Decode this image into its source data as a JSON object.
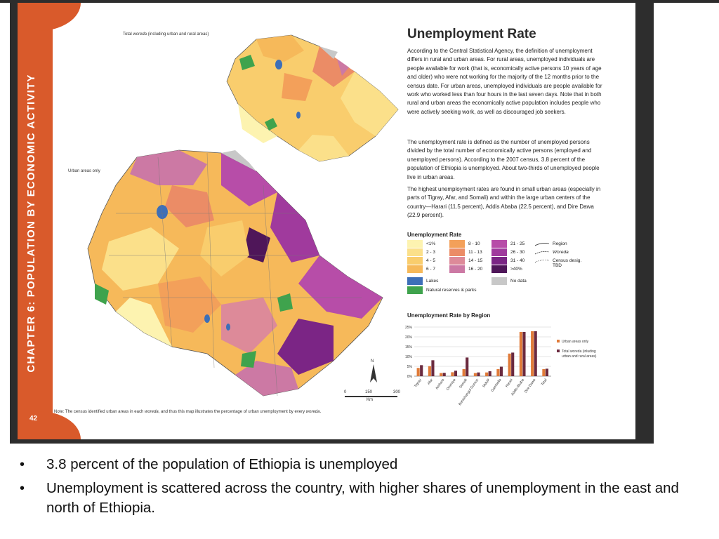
{
  "sidebar": {
    "chapter": "CHAPTER 6: POPULATION BY ECONOMIC ACTIVITY",
    "page_number": "42"
  },
  "maps": {
    "top_label_prefix": "Total ",
    "top_label_italic": "woreda",
    "top_label_suffix": " (including urban and rural areas)",
    "main_label": "Urban areas only",
    "north": "N",
    "scale": [
      "0",
      "150",
      "300"
    ],
    "scale_unit": "Km"
  },
  "note": {
    "prefix": "Note: The census identified urban areas in each ",
    "italic1": "woreda",
    "middle": ", and thus this map illustrates the percentage of urban unemployment by every ",
    "italic2": "woreda",
    "suffix": "."
  },
  "article": {
    "title": "Unemployment Rate",
    "paragraphs": [
      "According to the Central Statistical Agency, the definition of unemployment differs in rural and urban areas. For rural areas, unemployed individuals are people available for work (that is, economically active persons 10 years of age and older) who were not working for the majority of the 12 months prior to the census date. For urban areas, unemployed individuals are people available for work who worked less than four hours in the last seven days. Note that in both rural and urban areas the economically active population includes people who were actively seeking work, as well as discouraged job seekers.",
      "The unemployment rate is defined as the number of unemployed persons divided by the total number of economically active persons (employed and unemployed persons). According to the 2007 census, 3.8 percent of the population of Ethiopia is unemployed. About two-thirds of unemployed people live in urban areas.",
      "The highest unemployment rates are found in small urban areas (especially in parts of Tigray, Afar, and Somali) and within the large urban centers of the country—Harari (11.5 percent), Addis Ababa (22.5 percent), and Dire Dawa (22.9 percent)."
    ]
  },
  "legend": {
    "title": "Unemployment Rate",
    "items": [
      {
        "label": "<1%",
        "color": "#fdf3b0"
      },
      {
        "label": "2 - 3",
        "color": "#fbe08a"
      },
      {
        "label": "4 - 5",
        "color": "#f9cd6d"
      },
      {
        "label": "6 - 7",
        "color": "#f6b95a"
      },
      {
        "label": "8 - 10",
        "color": "#f3a05a"
      },
      {
        "label": "11 - 13",
        "color": "#eb8c66"
      },
      {
        "label": "14 - 15",
        "color": "#dd8a99"
      },
      {
        "label": "16 - 20",
        "color": "#cc79a4"
      },
      {
        "label": "21 - 25",
        "color": "#b74da8"
      },
      {
        "label": "26 - 30",
        "color": "#a03a9d"
      },
      {
        "label": "31 - 40",
        "color": "#7b2585"
      },
      {
        "label": ">40%",
        "color": "#4f1659"
      },
      {
        "label": "Lakes",
        "color": "#3d6fb8"
      },
      {
        "label": "No data",
        "color": "#c8c8c8"
      },
      {
        "label": "Natural reserves & parks",
        "color": "#3fa34d"
      }
    ],
    "lines": [
      {
        "label": "Region"
      },
      {
        "label": "Woreda"
      },
      {
        "label": "Census desig. TBD"
      }
    ]
  },
  "chart_data": {
    "type": "bar",
    "title": "Unemployment Rate by Region",
    "categories": [
      "Tigray",
      "Afar",
      "Amhara",
      "Oromiya",
      "Somali",
      "Benishangul Gumuz",
      "SNNP",
      "Gambella",
      "Harari",
      "Addis Ababa",
      "Dire Dawa",
      "Total"
    ],
    "series": [
      {
        "name": "Urban areas only",
        "color": "#e07b39",
        "values": [
          4.2,
          5.1,
          1.6,
          2.0,
          3.6,
          1.6,
          1.9,
          3.6,
          11.5,
          22.5,
          22.9,
          3.6
        ]
      },
      {
        "name": "Total woreda (including urban and rural areas)",
        "color": "#6b2a3f",
        "values": [
          5.6,
          8.1,
          1.7,
          2.8,
          9.5,
          1.9,
          2.5,
          4.8,
          12.0,
          22.5,
          22.9,
          3.8
        ]
      }
    ],
    "ytick_labels": [
      "25%",
      "20%",
      "15%",
      "10%",
      "5%",
      "0%"
    ],
    "ylim": [
      0,
      25
    ],
    "legend_placement": "right"
  },
  "bullets": [
    "3.8 percent of the population of Ethiopia is unemployed",
    "Unemployment is scattered across the country, with higher shares of unemployment in the east and north of Ethiopia."
  ]
}
